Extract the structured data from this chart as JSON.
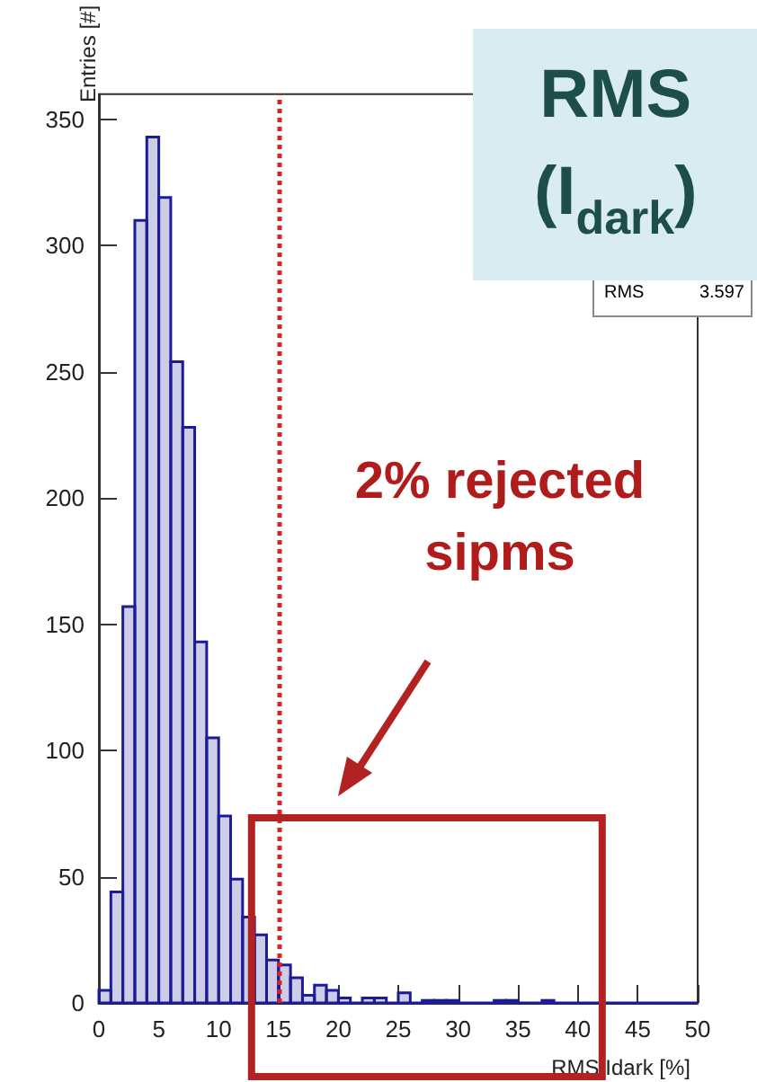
{
  "chart_data": {
    "type": "histogram",
    "title": "RMS\n(I$_{dark}$)",
    "xlabel": "RMS Idark [%]",
    "ylabel": "Entries [#]",
    "bins": [
      0,
      1,
      2,
      3,
      4,
      5,
      6,
      7,
      8,
      9,
      10,
      11,
      12,
      13,
      14,
      15,
      16,
      17,
      18,
      19,
      20,
      21,
      22,
      23,
      24,
      25,
      26,
      27,
      28,
      29,
      30,
      31,
      32,
      33,
      34,
      35,
      36,
      37,
      38,
      39,
      40,
      41,
      42,
      43,
      44,
      45,
      46,
      47,
      48,
      49,
      50
    ],
    "values": [
      5,
      44,
      157,
      310,
      343,
      319,
      254,
      228,
      143,
      105,
      74,
      49,
      34,
      27,
      17,
      15,
      10,
      3,
      7,
      5,
      2,
      0,
      2,
      2,
      0,
      4,
      0,
      1,
      1,
      1,
      0,
      0,
      0,
      1,
      1,
      0,
      0,
      1,
      0,
      0,
      0,
      0,
      0,
      0,
      0,
      0,
      0,
      0,
      0,
      0
    ],
    "color": "#1c1c96",
    "xlim": [
      0,
      50
    ],
    "xticks": [
      0,
      5,
      10,
      15,
      20,
      25,
      30,
      35,
      40,
      45,
      50
    ],
    "ylim": [
      0,
      360
    ],
    "yticks": [
      0,
      50,
      100,
      150,
      200,
      250,
      300,
      350
    ],
    "ref_lines": [
      {
        "axis": "x",
        "value": 15,
        "color": "#e02020",
        "line_style": "dotted"
      }
    ],
    "annotations": [
      "RMS 3.597",
      "2% rejected\nsipms"
    ],
    "grid": false
  }
}
